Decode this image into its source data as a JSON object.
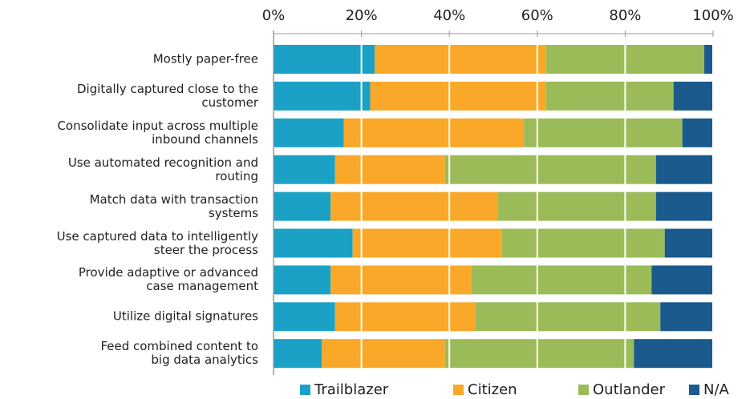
{
  "chart_data": {
    "type": "stacked-bar-horizontal",
    "categories": [
      "Mostly paper-free",
      "Digitally captured close to the\ncustomer",
      "Consolidate input across multiple\ninbound channels",
      "Use automated recognition and\nrouting",
      "Match data with transaction\nsystems",
      "Use captured data to intelligently\nsteer the process",
      "Provide adaptive or advanced\ncase management",
      "Utilize digital signatures",
      "Feed combined content to\nbig data analytics"
    ],
    "series": [
      {
        "name": "Trailblazer",
        "color": "#1ba1c5",
        "values": [
          23,
          22,
          16,
          14,
          13,
          18,
          13,
          14,
          11
        ]
      },
      {
        "name": "Citizen",
        "color": "#f9a829",
        "values": [
          39,
          40,
          41,
          25,
          38,
          34,
          32,
          32,
          28
        ]
      },
      {
        "name": "Outlander",
        "color": "#9bbb59",
        "values": [
          36,
          29,
          36,
          48,
          36,
          37,
          41,
          42,
          43
        ]
      },
      {
        "name": "N/A",
        "color": "#1a5a8c",
        "values": [
          2,
          9,
          7,
          13,
          13,
          11,
          14,
          12,
          18
        ]
      }
    ],
    "xlim": [
      0,
      100
    ],
    "xticks": [
      {
        "value": 0,
        "label": "0%"
      },
      {
        "value": 20,
        "label": "20%"
      },
      {
        "value": 40,
        "label": "40%"
      },
      {
        "value": 60,
        "label": "60%"
      },
      {
        "value": 80,
        "label": "80%"
      },
      {
        "value": 100,
        "label": "100%"
      }
    ],
    "grid": true,
    "legend": "bottom"
  }
}
